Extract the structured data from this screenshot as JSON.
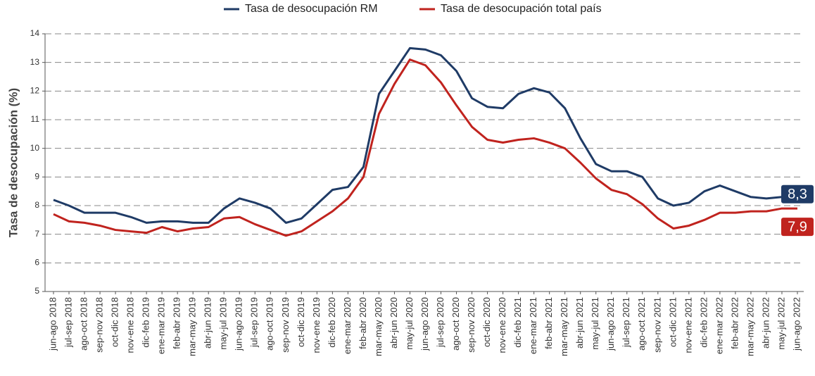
{
  "chart_data": {
    "type": "line",
    "ylabel": "Tasa de desocupación (%)",
    "categories": [
      "jun-ago 2018",
      "jul-sep 2018",
      "ago-oct 2018",
      "sep-nov 2018",
      "oct-dic 2018",
      "nov-ene 2018",
      "dic-feb 2019",
      "ene-mar 2019",
      "feb-abr 2019",
      "mar-may 2019",
      "abr-jun 2019",
      "may-jul 2019",
      "jun-ago 2019",
      "jul-sep 2019",
      "ago-oct 2019",
      "sep-nov 2019",
      "oct-dic 2019",
      "nov-ene 2019",
      "dic-feb 2020",
      "ene-mar 2020",
      "feb-abr 2020",
      "mar-may 2020",
      "abr-jun 2020",
      "may-jul 2020",
      "jun-ago 2020",
      "jul-sep 2020",
      "ago-oct 2020",
      "sep-nov 2020",
      "oct-dic 2020",
      "nov-ene 2020",
      "dic-feb 2021",
      "ene-mar 2021",
      "feb-abr 2021",
      "mar-may 2021",
      "abr-jun 2021",
      "may-jul 2021",
      "jun-ago 2021",
      "jul-sep 2021",
      "ago-oct 2021",
      "sep-nov 2021",
      "oct-dic 2021",
      "nov-ene 2021",
      "dic-feb 2022",
      "ene-mar 2022",
      "feb-abr 2022",
      "mar-may 2022",
      "abr-jun 2022",
      "may-jul 2022",
      "jun-ago 2022"
    ],
    "series": [
      {
        "name": "Tasa de desocupación RM",
        "color": "#1f3b66",
        "values": [
          8.2,
          8.0,
          7.75,
          7.75,
          7.75,
          7.6,
          7.4,
          7.45,
          7.45,
          7.4,
          7.4,
          7.9,
          8.25,
          8.1,
          7.9,
          7.4,
          7.55,
          8.05,
          8.55,
          8.65,
          9.35,
          11.9,
          12.7,
          13.5,
          13.45,
          13.25,
          12.7,
          11.75,
          11.45,
          11.4,
          11.9,
          12.1,
          11.95,
          11.4,
          10.35,
          9.45,
          9.2,
          9.2,
          9.0,
          8.25,
          8.0,
          8.1,
          8.5,
          8.7,
          8.5,
          8.3,
          8.25,
          8.3,
          8.3
        ],
        "value_labels": [
          null,
          null,
          null,
          null,
          null,
          null,
          null,
          null,
          null,
          null,
          null,
          null,
          null,
          null,
          null,
          null,
          null,
          null,
          null,
          null,
          null,
          null,
          null,
          null,
          null,
          null,
          null,
          null,
          null,
          null,
          null,
          null,
          null,
          null,
          null,
          null,
          null,
          null,
          null,
          null,
          null,
          null,
          null,
          null,
          null,
          null,
          null,
          null,
          "8,3"
        ]
      },
      {
        "name": "Tasa de desocupación total país",
        "color": "#c0231e",
        "values": [
          7.7,
          7.45,
          7.4,
          7.3,
          7.15,
          7.1,
          7.05,
          7.25,
          7.1,
          7.2,
          7.25,
          7.55,
          7.6,
          7.35,
          7.15,
          6.95,
          7.1,
          7.45,
          7.8,
          8.25,
          9.0,
          11.2,
          12.25,
          13.1,
          12.9,
          12.3,
          11.5,
          10.75,
          10.3,
          10.2,
          10.3,
          10.35,
          10.2,
          10.0,
          9.5,
          8.95,
          8.55,
          8.4,
          8.05,
          7.55,
          7.2,
          7.3,
          7.5,
          7.75,
          7.75,
          7.8,
          7.8,
          7.9,
          7.9
        ],
        "value_labels": [
          null,
          null,
          null,
          null,
          null,
          null,
          null,
          null,
          null,
          null,
          null,
          null,
          null,
          null,
          null,
          null,
          null,
          null,
          null,
          null,
          null,
          null,
          null,
          null,
          null,
          null,
          null,
          null,
          null,
          null,
          null,
          null,
          null,
          null,
          null,
          null,
          null,
          null,
          null,
          null,
          null,
          null,
          null,
          null,
          null,
          null,
          null,
          null,
          "7,9"
        ]
      }
    ],
    "ylim": [
      5,
      14
    ],
    "yticks": [
      5,
      6,
      7,
      8,
      9,
      10,
      11,
      12,
      13,
      14
    ],
    "grid": true,
    "legend": "top"
  }
}
